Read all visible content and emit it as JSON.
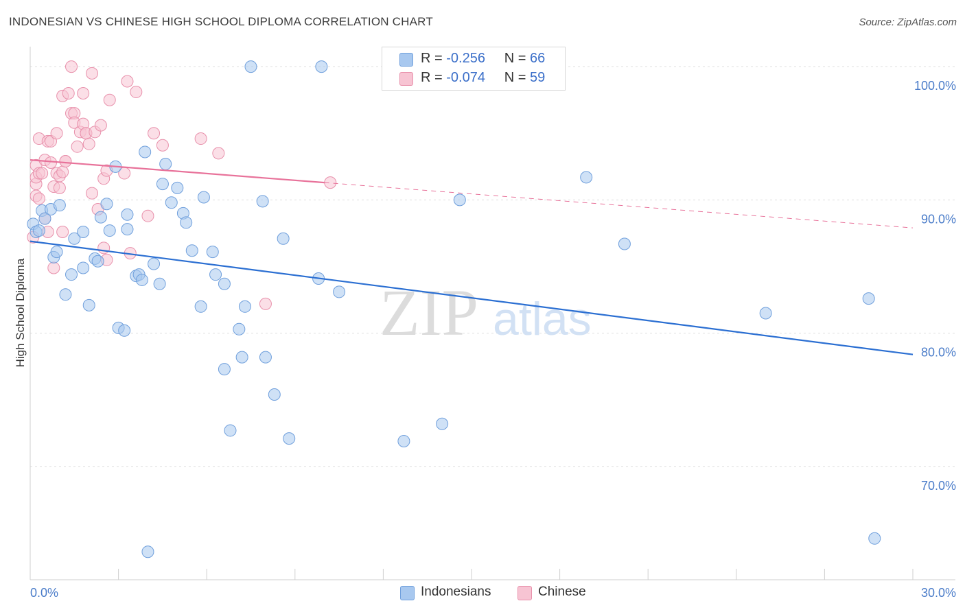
{
  "title": "INDONESIAN VS CHINESE HIGH SCHOOL DIPLOMA CORRELATION CHART",
  "source": "Source: ZipAtlas.com",
  "watermark": {
    "zip": "ZIP",
    "atlas": "atlas"
  },
  "legend": {
    "r_label": "R =",
    "n_label": "N =",
    "rows": [
      {
        "name": "Indonesians",
        "r": "-0.256",
        "n": "66",
        "color": "#a8c8ef",
        "border": "#6f9fdc"
      },
      {
        "name": "Chinese",
        "r": "-0.074",
        "n": "59",
        "color": "#f7c4d3",
        "border": "#e890ab"
      }
    ]
  },
  "colors": {
    "blue_fill": "#a8c8ef",
    "blue_stroke": "#6f9fdc",
    "blue_line": "#2b6fd2",
    "pink_fill": "#f7c4d3",
    "pink_stroke": "#e890ab",
    "pink_line": "#e8729a",
    "tick_text": "#4a7cc9"
  },
  "chart_data": {
    "type": "scatter",
    "title": "INDONESIAN VS CHINESE HIGH SCHOOL DIPLOMA CORRELATION CHART",
    "xlabel": "",
    "ylabel": "High School Diploma",
    "xlim": [
      0,
      30
    ],
    "ylim": [
      61.5,
      101.5
    ],
    "x_tick_labels": [
      "0.0%",
      "30.0%"
    ],
    "x_tick_label_values": [
      0,
      30
    ],
    "x_minor_ticks": [
      3,
      6,
      9,
      12,
      15,
      18,
      21,
      24,
      27
    ],
    "y_ticks": [
      70,
      80,
      90,
      100
    ],
    "y_tick_labels": [
      "70.0%",
      "80.0%",
      "90.0%",
      "100.0%"
    ],
    "grid": "horizontal dashed",
    "legend_position": "top-center",
    "series": [
      {
        "name": "Indonesians",
        "r": -0.256,
        "n": 66,
        "trend": {
          "x": [
            0,
            30
          ],
          "y": [
            86.9,
            78.4
          ],
          "style": "solid"
        },
        "points": [
          [
            0.1,
            88.2
          ],
          [
            0.2,
            87.6
          ],
          [
            0.3,
            87.7
          ],
          [
            0.4,
            89.2
          ],
          [
            0.5,
            88.6
          ],
          [
            0.7,
            89.3
          ],
          [
            0.8,
            85.7
          ],
          [
            0.9,
            86.1
          ],
          [
            1.0,
            89.6
          ],
          [
            1.2,
            82.9
          ],
          [
            1.4,
            84.4
          ],
          [
            1.5,
            87.1
          ],
          [
            1.8,
            84.9
          ],
          [
            1.8,
            87.6
          ],
          [
            2.0,
            82.1
          ],
          [
            2.2,
            85.6
          ],
          [
            2.3,
            85.4
          ],
          [
            2.4,
            88.7
          ],
          [
            2.6,
            89.7
          ],
          [
            2.7,
            87.7
          ],
          [
            2.9,
            92.5
          ],
          [
            3.0,
            80.4
          ],
          [
            3.2,
            80.2
          ],
          [
            3.3,
            88.9
          ],
          [
            3.3,
            87.8
          ],
          [
            3.6,
            84.3
          ],
          [
            3.7,
            84.4
          ],
          [
            3.8,
            84.0
          ],
          [
            3.9,
            93.6
          ],
          [
            4.0,
            63.6
          ],
          [
            4.2,
            85.2
          ],
          [
            4.4,
            83.7
          ],
          [
            4.5,
            91.2
          ],
          [
            4.6,
            92.7
          ],
          [
            4.8,
            89.8
          ],
          [
            5.0,
            90.9
          ],
          [
            5.2,
            89.0
          ],
          [
            5.3,
            88.3
          ],
          [
            5.5,
            86.2
          ],
          [
            5.8,
            82.0
          ],
          [
            5.9,
            90.2
          ],
          [
            6.2,
            86.1
          ],
          [
            6.3,
            84.4
          ],
          [
            6.6,
            77.3
          ],
          [
            6.6,
            83.7
          ],
          [
            6.8,
            72.7
          ],
          [
            7.1,
            80.3
          ],
          [
            7.2,
            78.2
          ],
          [
            7.3,
            82.0
          ],
          [
            7.5,
            100.0
          ],
          [
            7.9,
            89.9
          ],
          [
            8.0,
            78.2
          ],
          [
            8.3,
            75.4
          ],
          [
            8.6,
            87.1
          ],
          [
            8.8,
            72.1
          ],
          [
            9.8,
            84.1
          ],
          [
            9.9,
            100.0
          ],
          [
            10.5,
            83.1
          ],
          [
            12.7,
            71.9
          ],
          [
            14.0,
            73.2
          ],
          [
            14.6,
            90.0
          ],
          [
            18.9,
            91.7
          ],
          [
            20.2,
            86.7
          ],
          [
            25.0,
            81.5
          ],
          [
            28.5,
            82.6
          ],
          [
            28.7,
            64.6
          ]
        ]
      },
      {
        "name": "Chinese",
        "r": -0.074,
        "n": 59,
        "trend": {
          "x": [
            0,
            10
          ],
          "y": [
            93.0,
            91.3
          ],
          "style": "solid",
          "extended": {
            "x": [
              10,
              30
            ],
            "y": [
              91.3,
              87.9
            ],
            "style": "dashed"
          }
        },
        "points": [
          [
            0.1,
            87.2
          ],
          [
            0.2,
            91.2
          ],
          [
            0.2,
            92.6
          ],
          [
            0.2,
            91.7
          ],
          [
            0.2,
            90.3
          ],
          [
            0.3,
            94.6
          ],
          [
            0.3,
            90.1
          ],
          [
            0.3,
            92.0
          ],
          [
            0.4,
            92.0
          ],
          [
            0.5,
            93.0
          ],
          [
            0.5,
            88.6
          ],
          [
            0.6,
            94.4
          ],
          [
            0.6,
            87.6
          ],
          [
            0.7,
            94.4
          ],
          [
            0.7,
            92.8
          ],
          [
            0.8,
            91.0
          ],
          [
            0.8,
            84.9
          ],
          [
            0.9,
            92.0
          ],
          [
            0.9,
            95.0
          ],
          [
            1.0,
            91.8
          ],
          [
            1.0,
            90.9
          ],
          [
            1.1,
            92.1
          ],
          [
            1.1,
            97.8
          ],
          [
            1.1,
            87.6
          ],
          [
            1.2,
            92.9
          ],
          [
            1.2,
            92.9
          ],
          [
            1.3,
            98.0
          ],
          [
            1.4,
            100.0
          ],
          [
            1.4,
            96.5
          ],
          [
            1.5,
            96.5
          ],
          [
            1.5,
            95.8
          ],
          [
            1.6,
            94.0
          ],
          [
            1.7,
            95.1
          ],
          [
            1.8,
            98.0
          ],
          [
            1.8,
            95.7
          ],
          [
            1.9,
            95.0
          ],
          [
            1.9,
            95.0
          ],
          [
            2.0,
            94.2
          ],
          [
            2.1,
            90.5
          ],
          [
            2.1,
            99.5
          ],
          [
            2.2,
            95.1
          ],
          [
            2.3,
            89.3
          ],
          [
            2.4,
            95.6
          ],
          [
            2.5,
            86.4
          ],
          [
            2.5,
            91.6
          ],
          [
            2.6,
            85.5
          ],
          [
            2.6,
            92.2
          ],
          [
            2.7,
            97.5
          ],
          [
            3.2,
            92.0
          ],
          [
            3.3,
            98.9
          ],
          [
            3.4,
            86.0
          ],
          [
            3.6,
            98.1
          ],
          [
            4.0,
            88.8
          ],
          [
            4.2,
            95.0
          ],
          [
            4.5,
            94.1
          ],
          [
            5.8,
            94.6
          ],
          [
            6.4,
            93.5
          ],
          [
            8.0,
            82.2
          ],
          [
            10.2,
            91.3
          ]
        ]
      }
    ]
  }
}
